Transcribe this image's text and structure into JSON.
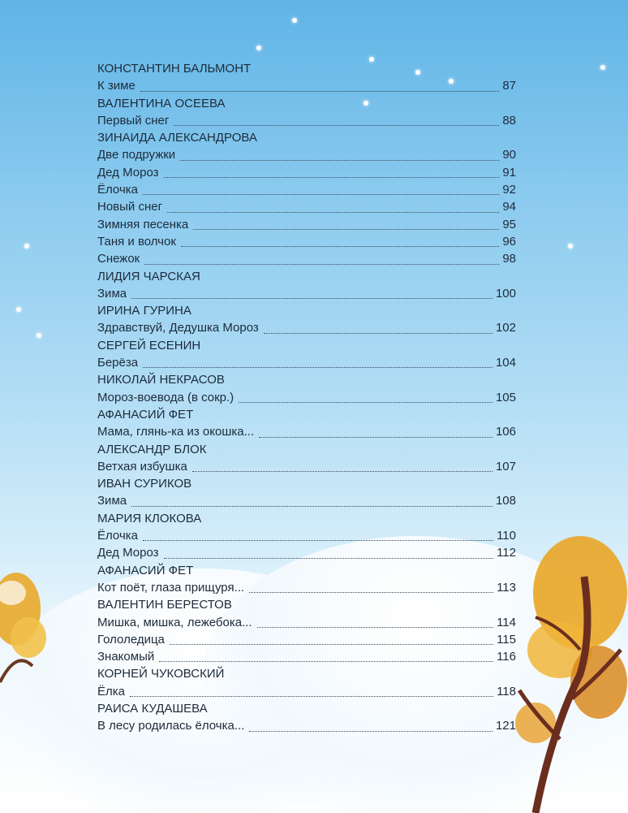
{
  "toc": [
    {
      "author": "КОНСТАНТИН БАЛЬМОНТ",
      "poems": [
        {
          "title": "К зиме",
          "page": "87"
        }
      ]
    },
    {
      "author": "ВАЛЕНТИНА ОСЕЕВА",
      "poems": [
        {
          "title": "Первый снег",
          "page": "88"
        }
      ]
    },
    {
      "author": "ЗИНАИДА АЛЕКСАНДРОВА",
      "poems": [
        {
          "title": "Две подружки",
          "page": "90"
        },
        {
          "title": "Дед Мороз",
          "page": "91"
        },
        {
          "title": "Ёлочка",
          "page": "92"
        },
        {
          "title": "Новый снег",
          "page": "94"
        },
        {
          "title": "Зимняя песенка",
          "page": "95"
        },
        {
          "title": "Таня и волчок",
          "page": "96"
        },
        {
          "title": "Снежок",
          "page": "98"
        }
      ]
    },
    {
      "author": "ЛИДИЯ ЧАРСКАЯ",
      "poems": [
        {
          "title": "Зима",
          "page": "100"
        }
      ]
    },
    {
      "author": "ИРИНА ГУРИНА",
      "poems": [
        {
          "title": "Здравствуй, Дедушка Мороз",
          "page": "102"
        }
      ]
    },
    {
      "author": "СЕРГЕЙ ЕСЕНИН",
      "poems": [
        {
          "title": "Берёза",
          "page": "104"
        }
      ]
    },
    {
      "author": "НИКОЛАЙ НЕКРАСОВ",
      "poems": [
        {
          "title": "Мороз-воевода (в сокр.)",
          "page": "105"
        }
      ]
    },
    {
      "author": "АФАНАСИЙ ФЕТ",
      "poems": [
        {
          "title": "Мама, глянь-ка из окошка...",
          "page": "106"
        }
      ]
    },
    {
      "author": "АЛЕКСАНДР БЛОК",
      "poems": [
        {
          "title": "Ветхая избушка",
          "page": "107"
        }
      ]
    },
    {
      "author": "ИВАН СУРИКОВ",
      "poems": [
        {
          "title": "Зима",
          "page": "108"
        }
      ]
    },
    {
      "author": "МАРИЯ КЛОКОВА",
      "poems": [
        {
          "title": "Ёлочка",
          "page": "110"
        },
        {
          "title": "Дед Мороз",
          "page": "112"
        }
      ]
    },
    {
      "author": "АФАНАСИЙ ФЕТ",
      "poems": [
        {
          "title": "Кот поёт, глаза прищуря...",
          "page": "113"
        }
      ]
    },
    {
      "author": "ВАЛЕНТИН БЕРЕСТОВ",
      "poems": [
        {
          "title": "Мишка, мишка, лежебока...",
          "page": "114"
        },
        {
          "title": "Гололедица",
          "page": "115"
        },
        {
          "title": "Знакомый",
          "page": "116"
        }
      ]
    },
    {
      "author": "КОРНЕЙ ЧУКОВСКИЙ",
      "poems": [
        {
          "title": "Ёлка",
          "page": "118"
        }
      ]
    },
    {
      "author": "РАИСА КУДАШЕВА",
      "poems": [
        {
          "title": "В лесу родилась ёлочка...",
          "page": "121"
        }
      ]
    }
  ]
}
